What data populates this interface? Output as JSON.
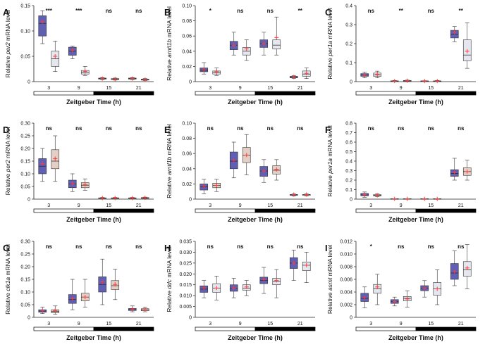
{
  "colors": {
    "blue_box": "#5f5fb4",
    "light_box": "#e6e6ef",
    "tan_box": "#e3cfc5",
    "mean": "#ff3b3b",
    "axis": "#222222"
  },
  "time_bar": {
    "light_color": "#ffffff",
    "dark_color": "#000000"
  },
  "chart_data": [
    {
      "type": "box",
      "panel": "A",
      "ylabel": "Relative per2 mRNA level",
      "ylabel_parts": [
        "Relative ",
        "per2",
        " mRNA level"
      ],
      "xlabel": "Zeitgeber Time (h)",
      "categories": [
        "3",
        "9",
        "15",
        "21"
      ],
      "ylim": [
        0,
        0.15
      ],
      "yticks": [
        0,
        0.05,
        0.1,
        0.15
      ],
      "ytick_labels": [
        "0",
        "0.05",
        "0.10",
        "0.15"
      ],
      "significance": [
        "***",
        "***",
        "ns",
        "ns"
      ],
      "series": [
        {
          "style": "blue",
          "boxes": [
            [
              0.075,
              0.09,
              0.115,
              0.13,
              0.14
            ],
            [
              0.045,
              0.052,
              0.06,
              0.068,
              0.07
            ],
            [
              0.004,
              0.005,
              0.006,
              0.007,
              0.008
            ],
            [
              0.004,
              0.005,
              0.006,
              0.007,
              0.008
            ]
          ],
          "means": [
            0.118,
            0.062,
            0.006,
            0.006
          ]
        },
        {
          "style": "light",
          "boxes": [
            [
              0.02,
              0.03,
              0.045,
              0.06,
              0.08
            ],
            [
              0.012,
              0.015,
              0.018,
              0.022,
              0.03
            ],
            [
              0.003,
              0.004,
              0.005,
              0.006,
              0.007
            ],
            [
              0.002,
              0.003,
              0.004,
              0.005,
              0.006
            ]
          ],
          "means": [
            0.05,
            0.02,
            0.005,
            0.004
          ]
        }
      ]
    },
    {
      "type": "box",
      "panel": "B",
      "ylabel": "Relative arntl1b mRNA level",
      "ylabel_parts": [
        "Relative ",
        "arntl1b",
        " mRNA level"
      ],
      "xlabel": "Zeitgeber Time (h)",
      "categories": [
        "3",
        "9",
        "15",
        "21"
      ],
      "ylim": [
        0,
        0.1
      ],
      "yticks": [
        0,
        0.02,
        0.04,
        0.06,
        0.08,
        0.1
      ],
      "ytick_labels": [
        "0",
        "0.02",
        "0.04",
        "0.06",
        "0.08",
        "0.10"
      ],
      "significance": [
        "*",
        "ns",
        "ns",
        "**"
      ],
      "series": [
        {
          "style": "blue",
          "boxes": [
            [
              0.01,
              0.013,
              0.015,
              0.018,
              0.025
            ],
            [
              0.035,
              0.042,
              0.048,
              0.053,
              0.065
            ],
            [
              0.035,
              0.045,
              0.05,
              0.055,
              0.065
            ],
            [
              0.004,
              0.005,
              0.006,
              0.007,
              0.008
            ]
          ],
          "means": [
            0.016,
            0.048,
            0.05,
            0.006
          ]
        },
        {
          "style": "light",
          "boxes": [
            [
              0.008,
              0.01,
              0.012,
              0.014,
              0.018
            ],
            [
              0.028,
              0.035,
              0.04,
              0.045,
              0.055
            ],
            [
              0.035,
              0.043,
              0.048,
              0.055,
              0.085
            ],
            [
              0.004,
              0.007,
              0.01,
              0.014,
              0.018
            ]
          ],
          "means": [
            0.013,
            0.043,
            0.058,
            0.011
          ]
        }
      ]
    },
    {
      "type": "box",
      "panel": "C",
      "ylabel": "Relative per1a mRNA level",
      "ylabel_parts": [
        "Relative ",
        "per1a",
        " mRNA level"
      ],
      "xlabel": "Zeitgeber Time (h)",
      "categories": [
        "3",
        "9",
        "15",
        "21"
      ],
      "ylim": [
        0,
        0.4
      ],
      "yticks": [
        0,
        0.1,
        0.2,
        0.3,
        0.4
      ],
      "ytick_labels": [
        "0",
        "0.1",
        "0.2",
        "0.3",
        "0.4"
      ],
      "significance": [
        "ns",
        "**",
        "ns",
        "**"
      ],
      "series": [
        {
          "style": "blue",
          "boxes": [
            [
              0.02,
              0.028,
              0.035,
              0.042,
              0.05
            ],
            [
              0.001,
              0.002,
              0.003,
              0.004,
              0.006
            ],
            [
              0.001,
              0.002,
              0.003,
              0.004,
              0.005
            ],
            [
              0.21,
              0.23,
              0.25,
              0.27,
              0.29
            ]
          ],
          "means": [
            0.035,
            0.003,
            0.003,
            0.26
          ]
        },
        {
          "style": "light",
          "boxes": [
            [
              0.02,
              0.028,
              0.035,
              0.045,
              0.055
            ],
            [
              0.001,
              0.002,
              0.004,
              0.006,
              0.008
            ],
            [
              0.001,
              0.002,
              0.003,
              0.004,
              0.006
            ],
            [
              0.07,
              0.11,
              0.14,
              0.22,
              0.31
            ]
          ],
          "means": [
            0.038,
            0.005,
            0.003,
            0.16
          ]
        }
      ]
    },
    {
      "type": "box",
      "panel": "D",
      "ylabel": "Relative per2 mRNA level",
      "ylabel_parts": [
        "Relative ",
        "per2",
        " mRNA level"
      ],
      "xlabel": "Zeitgeber Time (h)",
      "categories": [
        "3",
        "9",
        "15",
        "21"
      ],
      "ylim": [
        0,
        0.3
      ],
      "yticks": [
        0,
        0.05,
        0.1,
        0.15,
        0.2,
        0.25,
        0.3
      ],
      "ytick_labels": [
        "0",
        "0.05",
        "0.10",
        "0.15",
        "0.20",
        "0.25",
        "0.30"
      ],
      "significance": [
        "ns",
        "ns",
        "ns",
        "ns"
      ],
      "series": [
        {
          "style": "blue",
          "boxes": [
            [
              0.07,
              0.1,
              0.13,
              0.16,
              0.2
            ],
            [
              0.03,
              0.045,
              0.06,
              0.075,
              0.1
            ],
            [
              0.002,
              0.003,
              0.004,
              0.005,
              0.007
            ],
            [
              0.002,
              0.003,
              0.004,
              0.005,
              0.007
            ]
          ],
          "means": [
            0.14,
            0.06,
            0.004,
            0.004
          ]
        },
        {
          "style": "tan",
          "boxes": [
            [
              0.07,
              0.12,
              0.15,
              0.195,
              0.25
            ],
            [
              0.035,
              0.045,
              0.055,
              0.065,
              0.08
            ],
            [
              0.002,
              0.003,
              0.004,
              0.005,
              0.007
            ],
            [
              0.002,
              0.003,
              0.005,
              0.006,
              0.008
            ]
          ],
          "means": [
            0.16,
            0.058,
            0.004,
            0.005
          ]
        }
      ]
    },
    {
      "type": "box",
      "panel": "E",
      "ylabel": "Relative arntl1b mRNA level",
      "ylabel_parts": [
        "Relative ",
        "arntl1b",
        " mRNA level"
      ],
      "xlabel": "Zeitgeber Time (h)",
      "categories": [
        "3",
        "9",
        "15",
        "21"
      ],
      "ylim": [
        0,
        0.1
      ],
      "yticks": [
        0,
        0.02,
        0.04,
        0.06,
        0.08,
        0.1
      ],
      "ytick_labels": [
        "0",
        "0.02",
        "0.04",
        "0.06",
        "0.08",
        "0.10"
      ],
      "significance": [
        "ns",
        "ns",
        "ns",
        "ns"
      ],
      "series": [
        {
          "style": "blue",
          "boxes": [
            [
              0.007,
              0.012,
              0.016,
              0.02,
              0.026
            ],
            [
              0.028,
              0.04,
              0.05,
              0.062,
              0.075
            ],
            [
              0.022,
              0.03,
              0.037,
              0.043,
              0.052
            ],
            [
              0.004,
              0.005,
              0.006,
              0.006,
              0.007
            ]
          ],
          "means": [
            0.017,
            0.051,
            0.037,
            0.006
          ]
        },
        {
          "style": "tan",
          "boxes": [
            [
              0.01,
              0.015,
              0.018,
              0.021,
              0.026
            ],
            [
              0.032,
              0.048,
              0.058,
              0.068,
              0.085
            ],
            [
              0.025,
              0.033,
              0.038,
              0.044,
              0.052
            ],
            [
              0.004,
              0.005,
              0.006,
              0.006,
              0.007
            ]
          ],
          "means": [
            0.018,
            0.058,
            0.039,
            0.006
          ]
        }
      ]
    },
    {
      "type": "box",
      "panel": "F",
      "ylabel": "Relative per1a mRNA level",
      "ylabel_parts": [
        "Relative ",
        "per1a",
        " mRNA level"
      ],
      "xlabel": "Zeitgeber Time (h)",
      "categories": [
        "3",
        "9",
        "15",
        "21"
      ],
      "ylim": [
        0,
        0.8
      ],
      "yticks": [
        0,
        0.1,
        0.2,
        0.3,
        0.4,
        0.5,
        0.6,
        0.7,
        0.8
      ],
      "ytick_labels": [
        "0",
        "0.1",
        "0.2",
        "0.3",
        "0.4",
        "0.5",
        "0.6",
        "0.7",
        "0.8"
      ],
      "significance": [
        "ns",
        "ns",
        "ns",
        "ns"
      ],
      "series": [
        {
          "style": "blue",
          "boxes": [
            [
              0.02,
              0.035,
              0.045,
              0.06,
              0.075
            ],
            [
              0.001,
              0.002,
              0.003,
              0.004,
              0.005
            ],
            [
              0.001,
              0.002,
              0.003,
              0.004,
              0.005
            ],
            [
              0.2,
              0.24,
              0.27,
              0.31,
              0.43
            ]
          ],
          "means": [
            0.048,
            0.003,
            0.003,
            0.28
          ]
        },
        {
          "style": "tan",
          "boxes": [
            [
              0.025,
              0.033,
              0.04,
              0.047,
              0.055
            ],
            [
              0.001,
              0.002,
              0.003,
              0.004,
              0.005
            ],
            [
              0.001,
              0.002,
              0.003,
              0.004,
              0.005
            ],
            [
              0.2,
              0.25,
              0.29,
              0.33,
              0.41
            ]
          ],
          "means": [
            0.04,
            0.003,
            0.003,
            0.29
          ]
        }
      ]
    },
    {
      "type": "box",
      "panel": "G",
      "ylabel": "Relative clk1a mRNA level",
      "ylabel_parts": [
        "Relative ",
        "clk1a",
        " mRNA level"
      ],
      "xlabel": "Zeitgeber Time (h)",
      "categories": [
        "3",
        "9",
        "15",
        "21"
      ],
      "ylim": [
        0,
        0.3
      ],
      "yticks": [
        0,
        0.05,
        0.1,
        0.15,
        0.2,
        0.25,
        0.3
      ],
      "ytick_labels": [
        "0",
        "0.05",
        "0.10",
        "0.15",
        "0.20",
        "0.25",
        "0.30"
      ],
      "significance": [
        "ns",
        "ns",
        "ns",
        "ns"
      ],
      "series": [
        {
          "style": "blue",
          "boxes": [
            [
              0.015,
              0.02,
              0.025,
              0.03,
              0.04
            ],
            [
              0.03,
              0.055,
              0.07,
              0.09,
              0.15
            ],
            [
              0.05,
              0.1,
              0.13,
              0.16,
              0.23
            ],
            [
              0.022,
              0.027,
              0.031,
              0.035,
              0.045
            ]
          ],
          "means": [
            0.026,
            0.074,
            0.14,
            0.032
          ]
        },
        {
          "style": "tan",
          "boxes": [
            [
              0.012,
              0.018,
              0.024,
              0.03,
              0.045
            ],
            [
              0.04,
              0.065,
              0.08,
              0.095,
              0.15
            ],
            [
              0.07,
              0.11,
              0.125,
              0.145,
              0.19
            ],
            [
              0.022,
              0.026,
              0.03,
              0.034,
              0.04
            ]
          ],
          "means": [
            0.027,
            0.08,
            0.13,
            0.03
          ]
        }
      ]
    },
    {
      "type": "box",
      "panel": "H",
      "ylabel": "Relative ddc mRNA level",
      "ylabel_parts": [
        "Relative ",
        "ddc",
        " mRNA level"
      ],
      "xlabel": "Zeitgeber Time (h)",
      "categories": [
        "3",
        "9",
        "15",
        "21"
      ],
      "ylim": [
        0,
        0.035
      ],
      "yticks": [
        0,
        0.005,
        0.01,
        0.015,
        0.02,
        0.025,
        0.03,
        0.035
      ],
      "ytick_labels": [
        "0",
        "0.005",
        "0.010",
        "0.015",
        "0.020",
        "0.025",
        "0.030",
        "0.035"
      ],
      "significance": [
        "ns",
        "ns",
        "ns",
        "ns"
      ],
      "series": [
        {
          "style": "blue",
          "boxes": [
            [
              0.009,
              0.0115,
              0.013,
              0.0145,
              0.017
            ],
            [
              0.009,
              0.012,
              0.0135,
              0.015,
              0.018
            ],
            [
              0.011,
              0.0155,
              0.017,
              0.0185,
              0.023
            ],
            [
              0.017,
              0.0225,
              0.025,
              0.0275,
              0.031
            ]
          ],
          "means": [
            0.0135,
            0.0135,
            0.0175,
            0.025
          ]
        },
        {
          "style": "light",
          "boxes": [
            [
              0.008,
              0.0115,
              0.0135,
              0.0155,
              0.019
            ],
            [
              0.01,
              0.0125,
              0.0135,
              0.015,
              0.017
            ],
            [
              0.009,
              0.015,
              0.0165,
              0.018,
              0.022
            ],
            [
              0.016,
              0.0215,
              0.024,
              0.0255,
              0.03
            ]
          ],
          "means": [
            0.0135,
            0.014,
            0.017,
            0.024
          ]
        }
      ]
    },
    {
      "type": "box",
      "panel": "I",
      "ylabel": "Relative asmt mRNA level",
      "ylabel_parts": [
        "Relative ",
        "asmt",
        " mRNA level"
      ],
      "xlabel": "Zeitgeber Time (h)",
      "categories": [
        "3",
        "9",
        "15",
        "21"
      ],
      "ylim": [
        0,
        0.012
      ],
      "yticks": [
        0,
        0.002,
        0.004,
        0.006,
        0.008,
        0.01,
        0.012
      ],
      "ytick_labels": [
        "0",
        "0.002",
        "0.004",
        "0.006",
        "0.008",
        "0.010",
        "0.012"
      ],
      "significance": [
        "*",
        "ns",
        "ns",
        "ns"
      ],
      "series": [
        {
          "style": "blue",
          "boxes": [
            [
              0.0015,
              0.0025,
              0.003,
              0.0038,
              0.0048
            ],
            [
              0.0018,
              0.0022,
              0.0025,
              0.0028,
              0.0032
            ],
            [
              0.0032,
              0.0042,
              0.0046,
              0.005,
              0.0058
            ],
            [
              0.005,
              0.006,
              0.007,
              0.0085,
              0.0105
            ]
          ],
          "means": [
            0.0031,
            0.0025,
            0.0046,
            0.0072
          ]
        },
        {
          "style": "light",
          "boxes": [
            [
              0.002,
              0.0038,
              0.0045,
              0.0052,
              0.0068
            ],
            [
              0.0016,
              0.0026,
              0.003,
              0.0033,
              0.0042
            ],
            [
              0.002,
              0.0035,
              0.0045,
              0.0055,
              0.0075
            ],
            [
              0.0045,
              0.0065,
              0.0075,
              0.0088,
              0.0115
            ]
          ],
          "means": [
            0.0048,
            0.0029,
            0.0045,
            0.0078
          ]
        }
      ]
    }
  ]
}
